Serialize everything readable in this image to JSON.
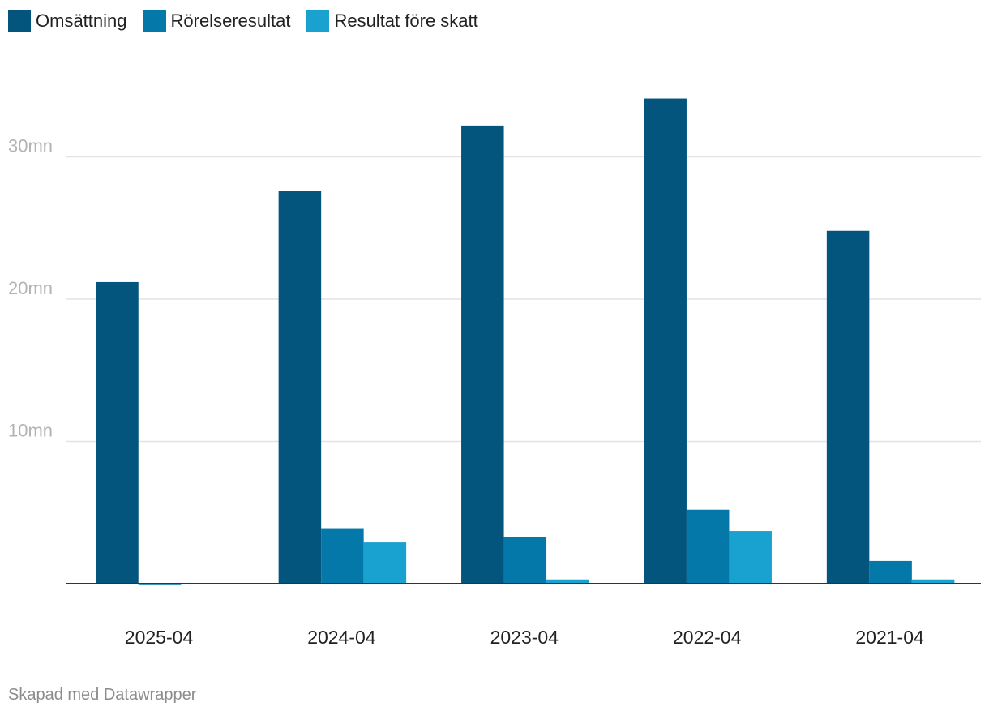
{
  "chart_data": {
    "type": "bar",
    "categories": [
      "2025-04",
      "2024-04",
      "2023-04",
      "2022-04",
      "2021-04"
    ],
    "series": [
      {
        "name": "Omsättning",
        "color": "#03557e",
        "values": [
          21.2,
          27.6,
          32.2,
          34.1,
          24.8
        ]
      },
      {
        "name": "Rörelseresultat",
        "color": "#0478a8",
        "values": [
          -0.1,
          3.9,
          3.3,
          5.2,
          1.6
        ]
      },
      {
        "name": "Resultat före skatt",
        "color": "#19a1d0",
        "values": [
          0,
          2.9,
          0.3,
          3.7,
          0.3
        ]
      }
    ],
    "y_ticks": [
      {
        "value": 10,
        "label": "10mn"
      },
      {
        "value": 20,
        "label": "20mn"
      },
      {
        "value": 30,
        "label": "30mn"
      }
    ],
    "ylim": [
      0,
      36
    ],
    "grid": true,
    "legend": "top-left",
    "title": "",
    "xlabel": "",
    "ylabel": ""
  },
  "footer": "Skapad med Datawrapper"
}
